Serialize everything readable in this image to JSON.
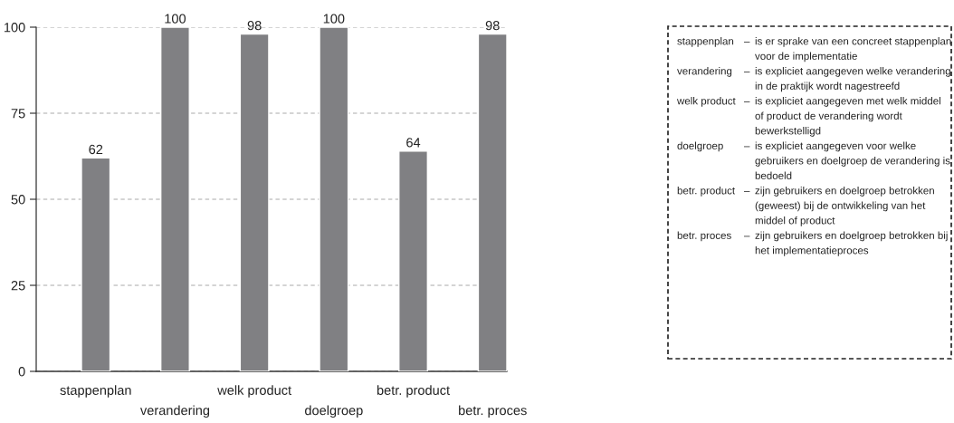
{
  "chart_data": {
    "type": "bar",
    "categories": [
      "stappenplan",
      "verandering",
      "welk product",
      "doelgroep",
      "betr. product",
      "betr. proces"
    ],
    "values": [
      62,
      100,
      98,
      100,
      64,
      98
    ],
    "color": "#808083",
    "data_labels": true,
    "ylim": [
      0,
      100
    ],
    "yticks": [
      0,
      25,
      50,
      75,
      100
    ],
    "grid": "y",
    "annotations": [
      "stappenplan – is er sprake van een concreet stappenplan\nvoor de implementatie",
      "verandering – is expliciet aangegeven welke verandering\nin de praktijk wordt nagestreefd",
      "welk product – is expliciet aangegeven met welk middel\nof product de verandering wordt\nbewerkstelligd",
      "doelgroep – is expliciet aangegeven voor welke\ngebruikers en doelgroep de verandering is\nbedoeld",
      "betr. product – zijn gebruikers en doelgroep betrokken\n(geweest) bij de ontwikkeling van het\nmiddel of product",
      "betr. proces – zijn gebruikers en doelgroep betrokken bij\nhet implementatieproces"
    ]
  }
}
